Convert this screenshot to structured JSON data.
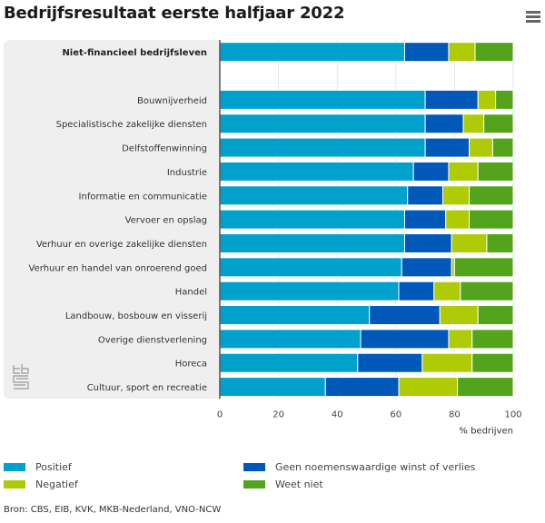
{
  "header": {
    "title": "Bedrijfsresultaat eerste halfjaar 2022",
    "menu_icon": "hamburger-menu-icon"
  },
  "logo": "cbs-logo",
  "source": "Bron: CBS, EIB, KVK, MKB-Nederland, VNO-NCW",
  "chart_data": {
    "type": "bar",
    "orientation": "horizontal",
    "stacked": true,
    "title": "Bedrijfsresultaat eerste halfjaar 2022",
    "xlabel": "% bedrijven",
    "ylabel": "",
    "xlim": [
      0,
      100
    ],
    "xticks": [
      0,
      20,
      40,
      60,
      80,
      100
    ],
    "grid": true,
    "legend_position": "bottom",
    "categories": [
      "Niet-financieel bedrijfsleven",
      "",
      "Bouwnijverheid",
      "Specialistische zakelijke diensten",
      "Delfstoffenwinning",
      "Industrie",
      "Informatie en communicatie",
      "Vervoer en opslag",
      "Verhuur en overige zakelijke diensten",
      "Verhuur en handel van onroerend goed",
      "Handel",
      "Landbouw, bosbouw en visserij",
      "Overige dienstverlening",
      "Horeca",
      "Cultuur, sport en recreatie"
    ],
    "bold_categories": [
      "Niet-financieel bedrijfsleven"
    ],
    "series": [
      {
        "name": "Positief",
        "color": "#00a1cd",
        "values": [
          63,
          null,
          70,
          70,
          70,
          66,
          64,
          63,
          63,
          62,
          61,
          51,
          48,
          47,
          36
        ]
      },
      {
        "name": "Geen noemenswaardige winst of verlies",
        "color": "#0058b8",
        "values": [
          15,
          null,
          18,
          13,
          15,
          12,
          12,
          14,
          16,
          17,
          12,
          24,
          30,
          22,
          25
        ]
      },
      {
        "name": "Negatief",
        "color": "#afcb05",
        "values": [
          9,
          null,
          6,
          7,
          8,
          10,
          9,
          8,
          12,
          1,
          9,
          13,
          8,
          17,
          20
        ]
      },
      {
        "name": "Weet niet",
        "color": "#53a31d",
        "values": [
          13,
          null,
          6,
          10,
          7,
          12,
          15,
          15,
          9,
          20,
          18,
          12,
          14,
          14,
          19
        ]
      }
    ],
    "legend": [
      {
        "name": "Positief",
        "color": "#00a1cd"
      },
      {
        "name": "Geen noemenswaardige winst of verlies",
        "color": "#0058b8"
      },
      {
        "name": "Negatief",
        "color": "#afcb05"
      },
      {
        "name": "Weet niet",
        "color": "#53a31d"
      }
    ]
  }
}
